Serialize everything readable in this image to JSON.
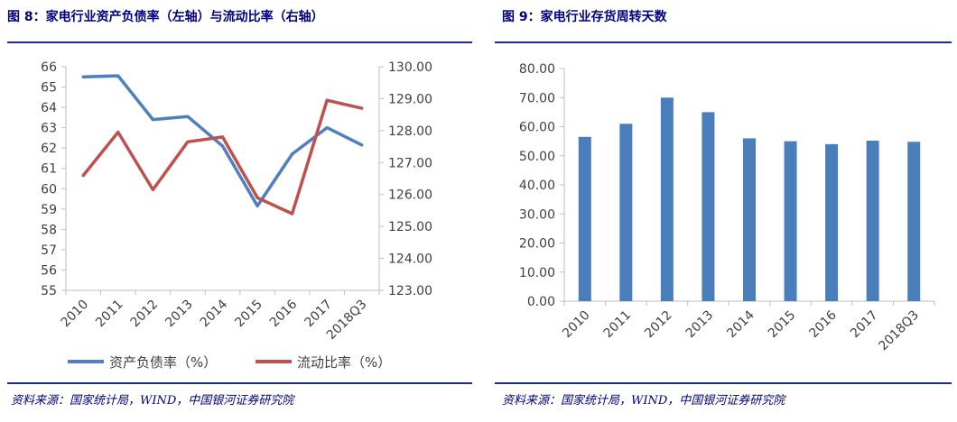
{
  "left": {
    "figure_title": "图 8：家电行业资产负债率（左轴）与流动比率（右轴）",
    "source": "资料来源：国家统计局，WIND，中国银河证券研究院"
  },
  "right": {
    "figure_title": "图 9：家电行业存货周转天数",
    "source": "资料来源：国家统计局，WIND，中国银河证券研究院"
  },
  "colors": {
    "rule": "#1c2b8c",
    "title": "#000080",
    "blue_series": "#4e7fc0",
    "red_series": "#c0504d",
    "bar": "#4a7ebb",
    "axis": "#bfbfbf"
  },
  "chart_data": [
    {
      "type": "line",
      "title": "家电行业资产负债率（左轴）与流动比率（右轴）",
      "categories": [
        "2010",
        "2011",
        "2012",
        "2013",
        "2014",
        "2015",
        "2016",
        "2017",
        "2018Q3"
      ],
      "y_left": {
        "ylim": [
          55,
          66
        ],
        "ticks": [
          "55",
          "56",
          "57",
          "58",
          "59",
          "60",
          "61",
          "62",
          "63",
          "64",
          "65",
          "66"
        ]
      },
      "y_right": {
        "ylim": [
          123.0,
          130.0
        ],
        "ticks": [
          "123.00",
          "124.00",
          "125.00",
          "126.00",
          "127.00",
          "128.00",
          "129.00",
          "130.00"
        ]
      },
      "series": [
        {
          "name": "资产负债率（%）",
          "axis": "left",
          "color": "#4e7fc0",
          "values": [
            65.5,
            65.55,
            63.4,
            63.55,
            62.1,
            59.15,
            61.7,
            63.0,
            62.15
          ]
        },
        {
          "name": "流动比率（%）",
          "axis": "right",
          "color": "#c0504d",
          "values": [
            126.6,
            127.95,
            126.15,
            127.65,
            127.8,
            125.9,
            125.4,
            128.95,
            128.7
          ]
        }
      ],
      "legend_position": "bottom",
      "grid": false
    },
    {
      "type": "bar",
      "title": "家电行业存货周转天数",
      "categories": [
        "2010",
        "2011",
        "2012",
        "2013",
        "2014",
        "2015",
        "2016",
        "2017",
        "2018Q3"
      ],
      "values": [
        56.5,
        61.0,
        70.0,
        65.0,
        56.0,
        55.0,
        54.0,
        55.2,
        54.8
      ],
      "ylim": [
        0,
        80
      ],
      "y_ticks": [
        "0.00",
        "10.00",
        "20.00",
        "30.00",
        "40.00",
        "50.00",
        "60.00",
        "70.00",
        "80.00"
      ],
      "grid": false
    }
  ]
}
